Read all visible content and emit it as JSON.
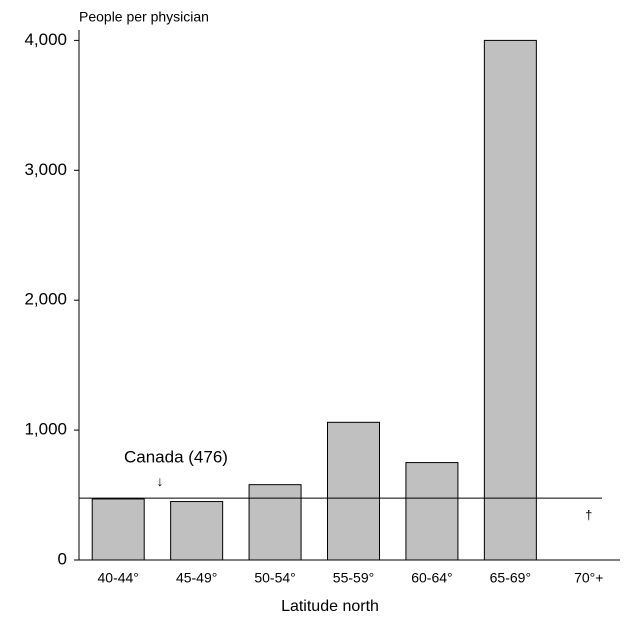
{
  "chart_data": {
    "type": "bar",
    "y_label": "People per physician",
    "x_label": "Latitude north",
    "categories": [
      "40-44°",
      "45-49°",
      "50-54°",
      "55-59°",
      "60-64°",
      "65-69°",
      "70°+"
    ],
    "values": [
      470,
      450,
      580,
      1060,
      750,
      4000,
      null
    ],
    "color": "#c0c0c0",
    "ylim": [
      0,
      4080
    ],
    "yticks": [
      0,
      {
        "value": 1000,
        "label": "1,000"
      },
      {
        "value": 2000,
        "label": "2,000"
      },
      {
        "value": 3000,
        "label": "3,000"
      },
      {
        "value": 4000,
        "label": "4,000"
      }
    ],
    "reference_line": {
      "value": 476,
      "label": "Canada (476)",
      "arrow": "↓"
    },
    "missing_marker": "†"
  }
}
